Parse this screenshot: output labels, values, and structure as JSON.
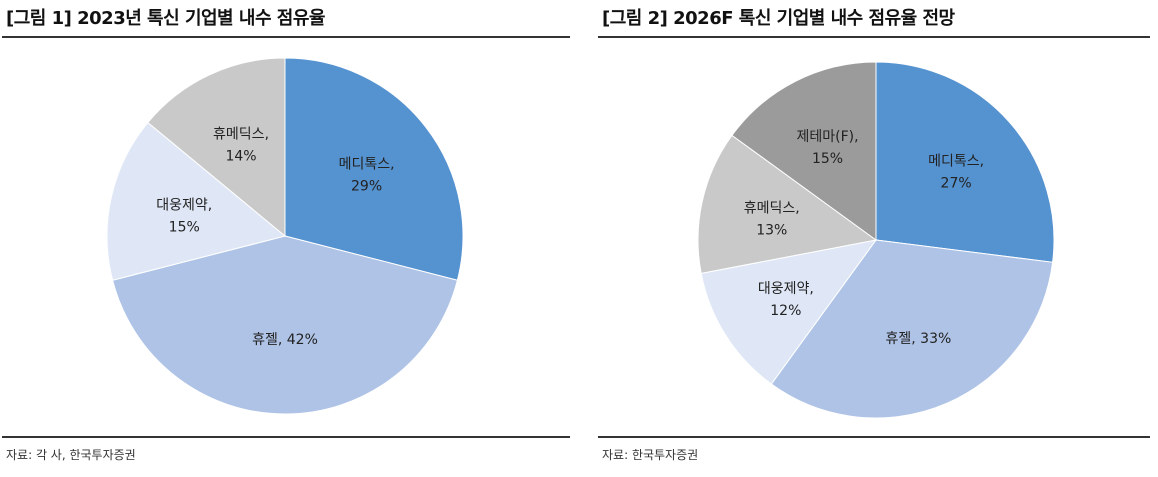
{
  "charts": [
    {
      "title": "[그림 1] 2023년 톡신 기업별 내수 점유율",
      "source": "자료: 각 사, 한국투자증권"
    },
    {
      "title": "[그림 2] 2026F 톡신 기업별 내수 점유율 전망",
      "source": "자료: 한국투자증권"
    }
  ],
  "chart_data": [
    {
      "type": "pie",
      "title": "[그림 1] 2023년 톡신 기업별 내수 점유율",
      "slices": [
        {
          "name": "메디톡스",
          "value": 29,
          "label": "29%",
          "color": "#5592d0"
        },
        {
          "name": "휴젤",
          "value": 42,
          "label": "42%",
          "color": "#aec3e6"
        },
        {
          "name": "대웅제약",
          "value": 15,
          "label": "15%",
          "color": "#dfe7f6"
        },
        {
          "name": "휴메딕스",
          "value": 14,
          "label": "14%",
          "color": "#c9c9c9"
        }
      ]
    },
    {
      "type": "pie",
      "title": "[그림 2] 2026F 톡신 기업별 내수 점유율 전망",
      "slices": [
        {
          "name": "메디톡스",
          "value": 27,
          "label": "27%",
          "color": "#5592d0"
        },
        {
          "name": "휴젤",
          "value": 33,
          "label": "33%",
          "color": "#aec3e6"
        },
        {
          "name": "대웅제약",
          "value": 12,
          "label": "12%",
          "color": "#dfe7f6"
        },
        {
          "name": "휴메딕스",
          "value": 13,
          "label": "13%",
          "color": "#c9c9c9"
        },
        {
          "name": "제테마(F)",
          "value": 15,
          "label": "15%",
          "color": "#9b9b9b"
        }
      ]
    }
  ]
}
